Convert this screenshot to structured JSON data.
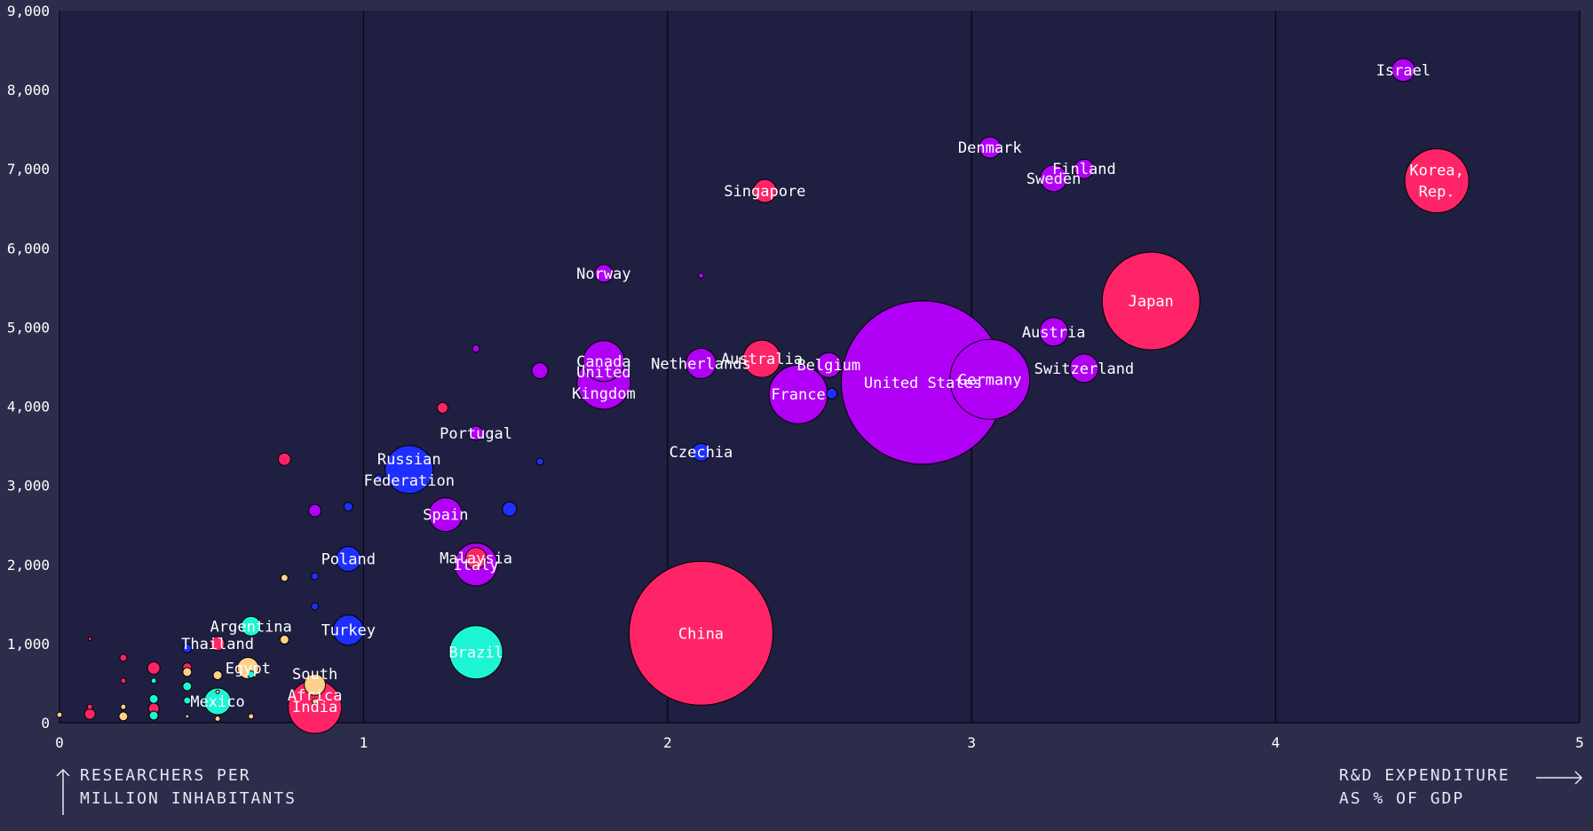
{
  "chart_data": {
    "type": "scatter",
    "title": "",
    "xlabel": "R&D EXPENDITURE AS % OF GDP",
    "xlabel_lines": [
      "R&D EXPENDITURE",
      "AS % OF GDP"
    ],
    "ylabel": "RESEARCHERS PER MILLION INHABITANTS",
    "ylabel_lines": [
      "RESEARCHERS PER",
      "MILLION INHABITANTS"
    ],
    "xlim": [
      0,
      5
    ],
    "ylim": [
      0,
      9000
    ],
    "x_ticks": [
      "0",
      "1",
      "2",
      "3",
      "4",
      "5"
    ],
    "y_ticks": [
      "0",
      "1,000",
      "2,000",
      "3,000",
      "4,000",
      "5,000",
      "6,000",
      "7,000",
      "8,000",
      "9,000"
    ],
    "grid": "vertical",
    "bubble_size_encodes": "relative magnitude (relative units)",
    "colors": {
      "background": "#2b2d4b",
      "plot_area": "#1f1f42",
      "magenta": "#ff2467",
      "purple": "#b000f5",
      "blue": "#1f2fff",
      "teal": "#1df5d5",
      "peach": "#ffd08a"
    },
    "points": [
      {
        "label": "United States",
        "x": 2.84,
        "y": 4300,
        "size": 92,
        "color": "purple"
      },
      {
        "label": "China",
        "x": 2.11,
        "y": 1130,
        "size": 81,
        "color": "magenta"
      },
      {
        "label": "Japan",
        "x": 3.59,
        "y": 5330,
        "size": 55,
        "color": "magenta"
      },
      {
        "label": "Germany",
        "x": 3.06,
        "y": 4340,
        "size": 45,
        "color": "purple"
      },
      {
        "label": "Korea, Rep.",
        "x": 4.53,
        "y": 6850,
        "size": 36,
        "color": "magenta"
      },
      {
        "label": "France",
        "x": 2.43,
        "y": 4150,
        "size": 33,
        "color": "purple"
      },
      {
        "label": "United Kingdom",
        "x": 1.79,
        "y": 4300,
        "size": 30,
        "color": "purple"
      },
      {
        "label": "India",
        "x": 0.84,
        "y": 200,
        "size": 30,
        "color": "magenta"
      },
      {
        "label": "Brazil",
        "x": 1.37,
        "y": 890,
        "size": 30,
        "color": "teal"
      },
      {
        "label": "Russian Federation",
        "x": 1.15,
        "y": 3200,
        "size": 27,
        "color": "blue"
      },
      {
        "label": "Italy",
        "x": 1.37,
        "y": 2000,
        "size": 24,
        "color": "purple"
      },
      {
        "label": "Canada",
        "x": 1.79,
        "y": 4570,
        "size": 23,
        "color": "purple"
      },
      {
        "label": "Australia",
        "x": 2.31,
        "y": 4600,
        "size": 21,
        "color": "magenta"
      },
      {
        "label": "Spain",
        "x": 1.27,
        "y": 2630,
        "size": 19,
        "color": "purple"
      },
      {
        "label": "Turkey",
        "x": 0.95,
        "y": 1170,
        "size": 17,
        "color": "blue"
      },
      {
        "label": "Netherlands",
        "x": 2.11,
        "y": 4540,
        "size": 17,
        "color": "purple"
      },
      {
        "label": "Switzerland",
        "x": 3.37,
        "y": 4480,
        "size": 16,
        "color": "purple"
      },
      {
        "label": "Austria",
        "x": 3.27,
        "y": 4940,
        "size": 16,
        "color": "purple"
      },
      {
        "label": "Sweden",
        "x": 3.27,
        "y": 6880,
        "size": 15,
        "color": "purple"
      },
      {
        "label": "Mexico",
        "x": 0.52,
        "y": 270,
        "size": 15,
        "color": "teal"
      },
      {
        "label": "Belgium",
        "x": 2.53,
        "y": 4520,
        "size": 14,
        "color": "purple"
      },
      {
        "label": "Poland",
        "x": 0.95,
        "y": 2070,
        "size": 14,
        "color": "blue"
      },
      {
        "label": "Israel",
        "x": 4.42,
        "y": 8250,
        "size": 13,
        "color": "purple"
      },
      {
        "label": "Singapore",
        "x": 2.32,
        "y": 6720,
        "size": 13,
        "color": "magenta"
      },
      {
        "label": "Denmark",
        "x": 3.06,
        "y": 7270,
        "size": 12,
        "color": "purple"
      },
      {
        "label": "Malaysia",
        "x": 1.37,
        "y": 2080,
        "size": 12,
        "color": "magenta"
      },
      {
        "label": "Egypt",
        "x": 0.62,
        "y": 690,
        "size": 12,
        "color": "peach"
      },
      {
        "label": "South Africa",
        "x": 0.84,
        "y": 480,
        "size": 12,
        "color": "peach"
      },
      {
        "label": "Finland",
        "x": 3.37,
        "y": 7000,
        "size": 11,
        "color": "purple"
      },
      {
        "label": "Argentina",
        "x": 0.63,
        "y": 1220,
        "size": 11,
        "color": "teal"
      },
      {
        "label": "Norway",
        "x": 1.79,
        "y": 5680,
        "size": 10,
        "color": "purple"
      },
      {
        "label": "Czechia",
        "x": 2.11,
        "y": 3420,
        "size": 10,
        "color": "blue"
      },
      {
        "label": "Portugal",
        "x": 1.37,
        "y": 3660,
        "size": 8,
        "color": "purple"
      },
      {
        "label": "Thailand",
        "x": 0.52,
        "y": 1000,
        "size": 8,
        "color": "magenta"
      },
      {
        "label": "",
        "x": 1.58,
        "y": 4450,
        "size": 9,
        "color": "purple"
      },
      {
        "label": "",
        "x": 1.26,
        "y": 3980,
        "size": 6,
        "color": "magenta"
      },
      {
        "label": "",
        "x": 0.74,
        "y": 3330,
        "size": 7,
        "color": "magenta"
      },
      {
        "label": "",
        "x": 0.84,
        "y": 2680,
        "size": 7,
        "color": "purple"
      },
      {
        "label": "",
        "x": 0.95,
        "y": 2730,
        "size": 5,
        "color": "blue"
      },
      {
        "label": "",
        "x": 1.48,
        "y": 2700,
        "size": 8,
        "color": "blue"
      },
      {
        "label": "",
        "x": 1.05,
        "y": 3090,
        "size": 4,
        "color": "blue"
      },
      {
        "label": "",
        "x": 1.58,
        "y": 3300,
        "size": 4,
        "color": "blue"
      },
      {
        "label": "",
        "x": 1.37,
        "y": 4730,
        "size": 4,
        "color": "purple"
      },
      {
        "label": "",
        "x": 2.11,
        "y": 5650,
        "size": 3,
        "color": "purple"
      },
      {
        "label": "",
        "x": 2.54,
        "y": 4160,
        "size": 6,
        "color": "blue"
      },
      {
        "label": "",
        "x": 0.84,
        "y": 1850,
        "size": 4,
        "color": "blue"
      },
      {
        "label": "",
        "x": 0.84,
        "y": 1470,
        "size": 4,
        "color": "blue"
      },
      {
        "label": "",
        "x": 0.74,
        "y": 1830,
        "size": 4,
        "color": "peach"
      },
      {
        "label": "",
        "x": 0.74,
        "y": 1050,
        "size": 5,
        "color": "peach"
      },
      {
        "label": "",
        "x": 0.42,
        "y": 940,
        "size": 5,
        "color": "blue"
      },
      {
        "label": "",
        "x": 0.31,
        "y": 690,
        "size": 7,
        "color": "magenta"
      },
      {
        "label": "",
        "x": 0.21,
        "y": 820,
        "size": 4,
        "color": "magenta"
      },
      {
        "label": "",
        "x": 0.1,
        "y": 1060,
        "size": 2,
        "color": "magenta"
      },
      {
        "label": "",
        "x": 0.42,
        "y": 700,
        "size": 5,
        "color": "magenta"
      },
      {
        "label": "",
        "x": 0.42,
        "y": 640,
        "size": 5,
        "color": "peach"
      },
      {
        "label": "",
        "x": 0.52,
        "y": 600,
        "size": 5,
        "color": "peach"
      },
      {
        "label": "",
        "x": 0.63,
        "y": 610,
        "size": 4,
        "color": "teal"
      },
      {
        "label": "",
        "x": 0.21,
        "y": 530,
        "size": 3,
        "color": "magenta"
      },
      {
        "label": "",
        "x": 0.31,
        "y": 530,
        "size": 3,
        "color": "teal"
      },
      {
        "label": "",
        "x": 0.42,
        "y": 460,
        "size": 5,
        "color": "teal"
      },
      {
        "label": "",
        "x": 0.42,
        "y": 280,
        "size": 4,
        "color": "teal"
      },
      {
        "label": "",
        "x": 0.31,
        "y": 300,
        "size": 5,
        "color": "teal"
      },
      {
        "label": "",
        "x": 0.31,
        "y": 180,
        "size": 6,
        "color": "magenta"
      },
      {
        "label": "",
        "x": 0.31,
        "y": 90,
        "size": 5,
        "color": "teal"
      },
      {
        "label": "",
        "x": 0.21,
        "y": 200,
        "size": 3,
        "color": "peach"
      },
      {
        "label": "",
        "x": 0.21,
        "y": 80,
        "size": 5,
        "color": "peach"
      },
      {
        "label": "",
        "x": 0.1,
        "y": 110,
        "size": 6,
        "color": "magenta"
      },
      {
        "label": "",
        "x": 0.1,
        "y": 200,
        "size": 3,
        "color": "magenta"
      },
      {
        "label": "",
        "x": 0.52,
        "y": 50,
        "size": 3,
        "color": "peach"
      },
      {
        "label": "",
        "x": 0.63,
        "y": 80,
        "size": 3,
        "color": "peach"
      },
      {
        "label": "",
        "x": 0.42,
        "y": 80,
        "size": 2,
        "color": "peach"
      },
      {
        "label": "",
        "x": 0.52,
        "y": 390,
        "size": 2,
        "color": "peach"
      },
      {
        "label": "",
        "x": 0.84,
        "y": 270,
        "size": 3,
        "color": "peach"
      },
      {
        "label": "",
        "x": 0.0,
        "y": 100,
        "size": 3,
        "color": "peach"
      }
    ]
  }
}
